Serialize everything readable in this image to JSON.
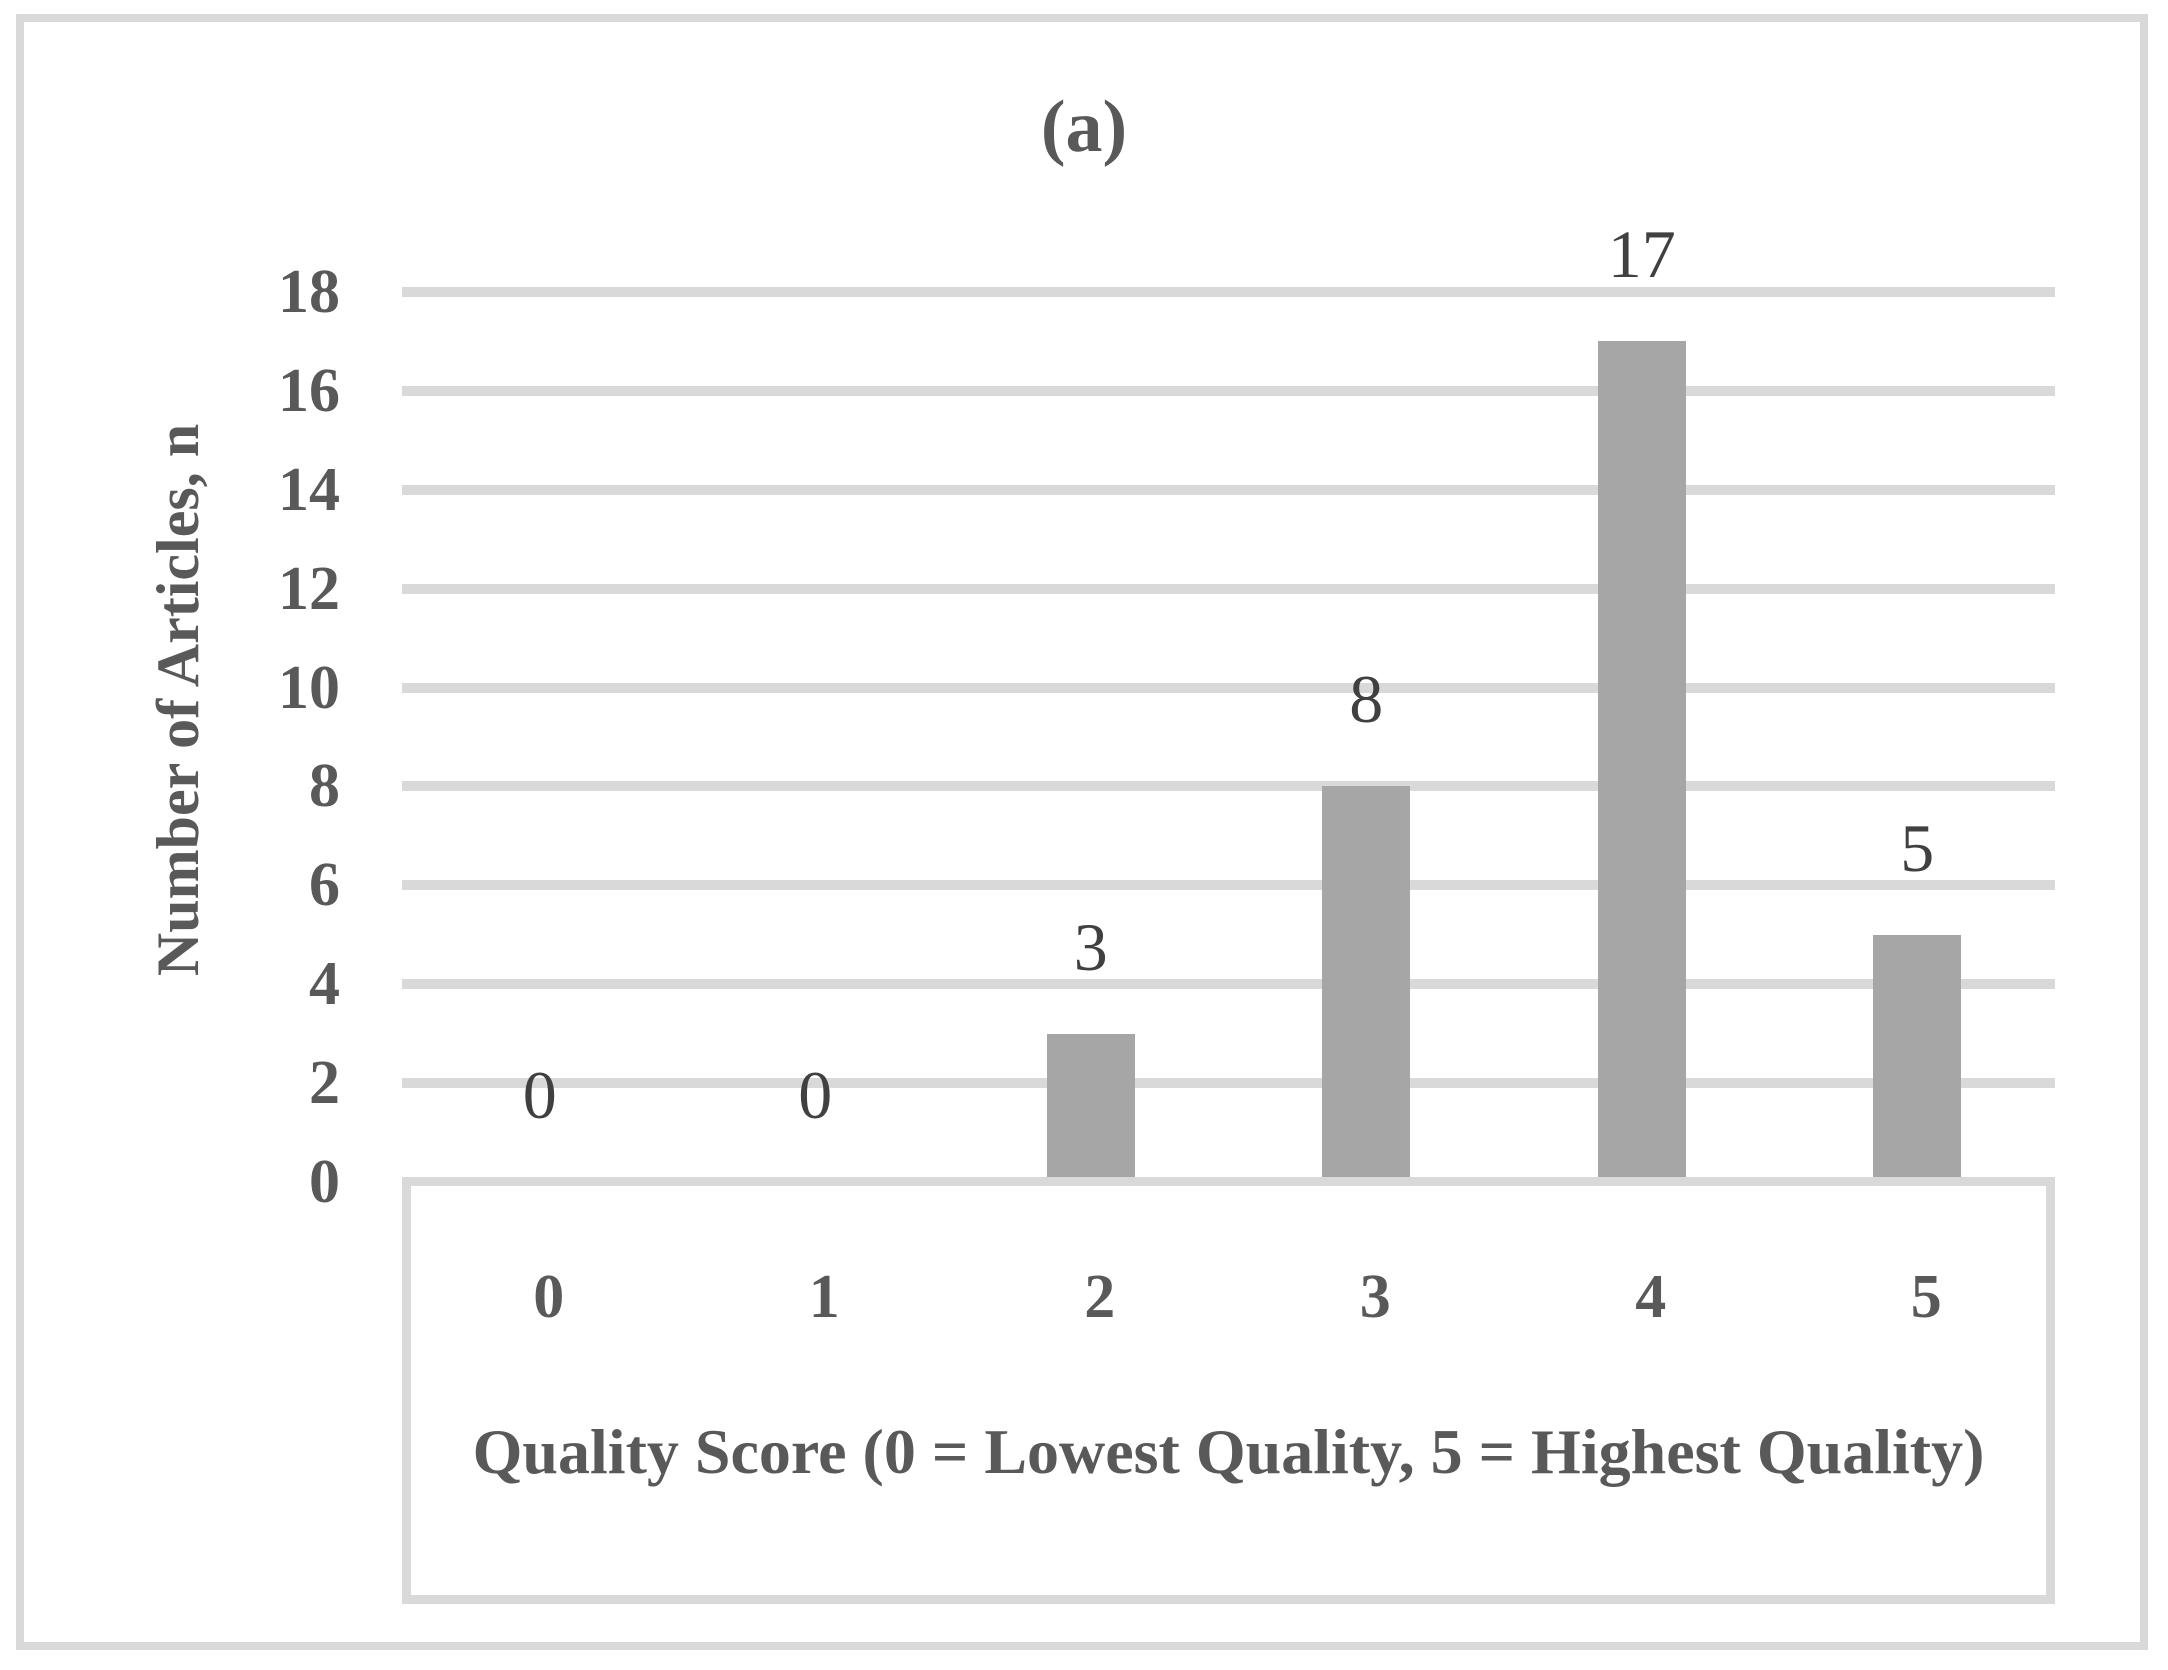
{
  "chart_data": {
    "type": "bar",
    "title": "(a)",
    "categories": [
      "0",
      "1",
      "2",
      "3",
      "4",
      "5"
    ],
    "values": [
      0,
      0,
      3,
      8,
      17,
      5
    ],
    "data_labels": [
      "0",
      "0",
      "3",
      "8",
      "17",
      "5"
    ],
    "xlabel": "Quality Score (0 = Lowest Quality, 5 = Highest Quality)",
    "ylabel": "Number of Articles, n",
    "ylim": [
      0,
      18
    ],
    "ytick_interval": 2,
    "yticks": [
      "0",
      "2",
      "4",
      "6",
      "8",
      "10",
      "12",
      "14",
      "16",
      "18"
    ],
    "grid": "horizontal-only",
    "legend": "none",
    "bar_color": "#a6a6a6",
    "gridline_color": "#d9d9d9",
    "frame_color": "#d9d9d9",
    "axis_text_color": "#595959",
    "data_label_color": "#404040"
  }
}
